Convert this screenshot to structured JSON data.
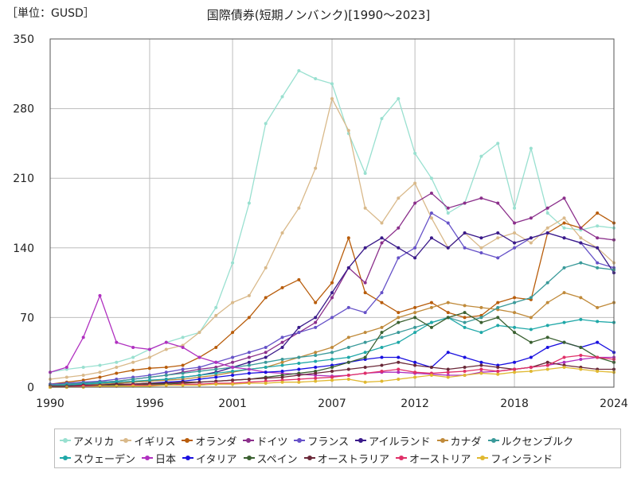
{
  "unit_label": "［単位：GUSD］",
  "title": "国際債券(短期ノンバンク)[1990～2023]",
  "chart_data": {
    "type": "line",
    "title": "国際債券(短期ノンバンク)[1990～2023]",
    "unit": "［単位：GUSD］",
    "xlim": [
      1990,
      2024
    ],
    "ylim": [
      0,
      350
    ],
    "x_ticks": [
      1990,
      1996,
      2001,
      2007,
      2012,
      2018,
      2024
    ],
    "y_ticks": [
      0,
      70,
      140,
      210,
      280,
      350
    ],
    "grid": true,
    "legend_position": "bottom",
    "x": [
      1990,
      1991,
      1992,
      1993,
      1994,
      1995,
      1996,
      1997,
      1998,
      1999,
      2000,
      2001,
      2002,
      2003,
      2004,
      2005,
      2006,
      2007,
      2008,
      2009,
      2010,
      2011,
      2012,
      2013,
      2014,
      2015,
      2016,
      2017,
      2018,
      2019,
      2020,
      2021,
      2022,
      2023,
      2024
    ],
    "series": [
      {
        "name": "アメリカ",
        "color": "#99e0d0",
        "values": [
          15,
          18,
          20,
          22,
          25,
          30,
          38,
          45,
          50,
          55,
          80,
          125,
          185,
          265,
          292,
          318,
          310,
          305,
          255,
          215,
          270,
          290,
          235,
          210,
          175,
          185,
          232,
          245,
          180,
          240,
          175,
          160,
          158,
          162,
          160
        ]
      },
      {
        "name": "イギリス",
        "color": "#d9b98a",
        "values": [
          8,
          10,
          12,
          15,
          20,
          25,
          30,
          38,
          42,
          55,
          72,
          85,
          92,
          120,
          155,
          180,
          220,
          290,
          258,
          180,
          165,
          190,
          205,
          170,
          140,
          155,
          140,
          150,
          155,
          145,
          160,
          170,
          150,
          140,
          125
        ]
      },
      {
        "name": "オランダ",
        "color": "#b85c0a",
        "values": [
          3,
          5,
          7,
          10,
          14,
          17,
          19,
          20,
          22,
          30,
          40,
          55,
          70,
          90,
          100,
          108,
          85,
          105,
          150,
          95,
          85,
          75,
          80,
          85,
          75,
          70,
          72,
          85,
          90,
          88,
          155,
          165,
          160,
          175,
          165
        ]
      },
      {
        "name": "ドイツ",
        "color": "#8b2f8b",
        "values": [
          2,
          3,
          4,
          5,
          6,
          8,
          10,
          12,
          15,
          18,
          20,
          25,
          30,
          35,
          45,
          55,
          65,
          90,
          120,
          105,
          145,
          160,
          185,
          195,
          180,
          185,
          190,
          185,
          165,
          170,
          180,
          190,
          160,
          150,
          148
        ]
      },
      {
        "name": "フランス",
        "color": "#6652c8",
        "values": [
          3,
          4,
          5,
          6,
          8,
          10,
          12,
          15,
          18,
          20,
          25,
          30,
          35,
          40,
          50,
          55,
          60,
          70,
          80,
          75,
          95,
          130,
          140,
          175,
          165,
          140,
          135,
          130,
          140,
          150,
          155,
          150,
          145,
          125,
          120
        ]
      },
      {
        "name": "アイルランド",
        "color": "#3a1a8a",
        "values": [
          1,
          2,
          2,
          3,
          4,
          5,
          6,
          8,
          10,
          12,
          15,
          20,
          25,
          30,
          40,
          60,
          70,
          95,
          120,
          140,
          150,
          140,
          130,
          150,
          140,
          155,
          150,
          155,
          145,
          150,
          155,
          150,
          145,
          140,
          115
        ]
      },
      {
        "name": "カナダ",
        "color": "#c08a3a",
        "values": [
          1,
          2,
          2,
          3,
          4,
          5,
          6,
          7,
          8,
          10,
          12,
          15,
          18,
          20,
          25,
          30,
          35,
          40,
          50,
          55,
          60,
          70,
          75,
          80,
          85,
          82,
          80,
          78,
          75,
          70,
          85,
          95,
          90,
          80,
          85
        ]
      },
      {
        "name": "ルクセンブルク",
        "color": "#3a9a9a",
        "values": [
          2,
          3,
          4,
          5,
          6,
          8,
          10,
          12,
          14,
          16,
          18,
          20,
          22,
          25,
          28,
          30,
          32,
          35,
          40,
          45,
          50,
          55,
          60,
          65,
          70,
          65,
          70,
          80,
          85,
          90,
          105,
          120,
          125,
          120,
          118
        ]
      },
      {
        "name": "スウェーデン",
        "color": "#1fa8a8",
        "values": [
          1,
          2,
          3,
          4,
          5,
          6,
          7,
          8,
          10,
          12,
          14,
          16,
          18,
          20,
          22,
          24,
          26,
          28,
          30,
          35,
          40,
          45,
          55,
          65,
          70,
          60,
          55,
          62,
          60,
          58,
          62,
          65,
          68,
          66,
          65
        ]
      },
      {
        "name": "日本",
        "color": "#b030c0",
        "values": [
          15,
          20,
          50,
          92,
          45,
          40,
          38,
          45,
          40,
          30,
          25,
          20,
          18,
          15,
          14,
          13,
          12,
          11,
          12,
          14,
          15,
          15,
          14,
          13,
          12,
          12,
          15,
          16,
          18,
          20,
          22,
          25,
          28,
          30,
          30
        ]
      },
      {
        "name": "イタリア",
        "color": "#1a10e0",
        "values": [
          1,
          1,
          2,
          2,
          3,
          3,
          4,
          5,
          6,
          8,
          10,
          12,
          14,
          15,
          16,
          18,
          20,
          22,
          25,
          28,
          30,
          30,
          25,
          20,
          35,
          30,
          25,
          22,
          25,
          30,
          40,
          45,
          40,
          45,
          35
        ]
      },
      {
        "name": "スペイン",
        "color": "#3a6030",
        "values": [
          0,
          1,
          1,
          1,
          2,
          2,
          3,
          3,
          4,
          5,
          6,
          7,
          8,
          10,
          12,
          14,
          16,
          20,
          25,
          30,
          55,
          65,
          70,
          60,
          70,
          75,
          65,
          70,
          55,
          45,
          50,
          45,
          40,
          30,
          25
        ]
      },
      {
        "name": "オーストラリア",
        "color": "#6a2838",
        "values": [
          1,
          1,
          2,
          2,
          3,
          3,
          4,
          4,
          5,
          5,
          6,
          7,
          8,
          9,
          10,
          12,
          14,
          16,
          18,
          20,
          22,
          25,
          22,
          20,
          18,
          20,
          22,
          20,
          18,
          20,
          25,
          22,
          20,
          18,
          18
        ]
      },
      {
        "name": "オーストリア",
        "color": "#e03068",
        "values": [
          0,
          0,
          1,
          1,
          1,
          2,
          2,
          2,
          3,
          3,
          4,
          4,
          5,
          6,
          7,
          8,
          9,
          10,
          12,
          14,
          16,
          18,
          15,
          14,
          15,
          16,
          18,
          16,
          18,
          20,
          22,
          30,
          32,
          30,
          28
        ]
      },
      {
        "name": "フィンランド",
        "color": "#e0b830",
        "values": [
          0,
          0,
          0,
          1,
          1,
          1,
          1,
          2,
          2,
          2,
          3,
          3,
          4,
          4,
          5,
          5,
          6,
          7,
          8,
          5,
          6,
          8,
          10,
          12,
          10,
          12,
          14,
          13,
          15,
          16,
          18,
          20,
          18,
          16,
          15
        ]
      }
    ]
  }
}
